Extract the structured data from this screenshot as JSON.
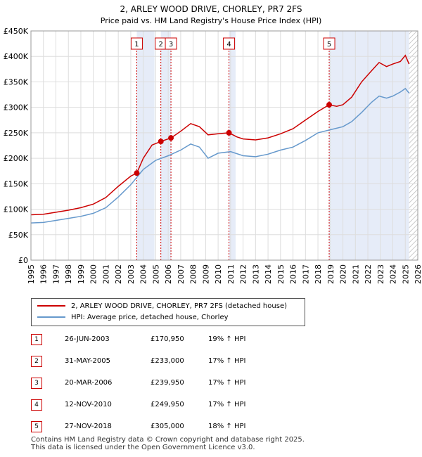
{
  "chart_data": {
    "type": "line",
    "title": "2, ARLEY WOOD DRIVE, CHORLEY, PR7 2FS",
    "subtitle": "Price paid vs. HM Land Registry's House Price Index (HPI)",
    "xlim": [
      1995,
      2026
    ],
    "ylim": [
      0,
      450000
    ],
    "x_ticks": [
      "1995",
      "1996",
      "1997",
      "1998",
      "1999",
      "2000",
      "2001",
      "2002",
      "2003",
      "2004",
      "2005",
      "2006",
      "2007",
      "2008",
      "2009",
      "2010",
      "2011",
      "2012",
      "2013",
      "2014",
      "2015",
      "2016",
      "2017",
      "2018",
      "2019",
      "2020",
      "2021",
      "2022",
      "2023",
      "2024",
      "2025",
      "2026"
    ],
    "y_ticks": [
      {
        "value": 0,
        "label": "£0"
      },
      {
        "value": 50000,
        "label": "£50K"
      },
      {
        "value": 100000,
        "label": "£100K"
      },
      {
        "value": 150000,
        "label": "£150K"
      },
      {
        "value": 200000,
        "label": "£200K"
      },
      {
        "value": 250000,
        "label": "£250K"
      },
      {
        "value": 300000,
        "label": "£300K"
      },
      {
        "value": 350000,
        "label": "£350K"
      },
      {
        "value": 400000,
        "label": "£400K"
      },
      {
        "value": 450000,
        "label": "£450K"
      }
    ],
    "shaded_ranges": [
      [
        2003.48,
        2004.9
      ],
      [
        2005.41,
        2006.22
      ],
      [
        2010.87,
        2011.4
      ],
      [
        2018.9,
        2025.3
      ]
    ],
    "future_hatch_from": 2025.3,
    "series": [
      {
        "name": "2, ARLEY WOOD DRIVE, CHORLEY, PR7 2FS (detached house)",
        "color": "#cc0000",
        "points": [
          [
            1995,
            89000
          ],
          [
            1996,
            90000
          ],
          [
            1997,
            94000
          ],
          [
            1998,
            98000
          ],
          [
            1999,
            103000
          ],
          [
            2000,
            110000
          ],
          [
            2001,
            123000
          ],
          [
            2002,
            145000
          ],
          [
            2003,
            165000
          ],
          [
            2003.48,
            170950
          ],
          [
            2004,
            200000
          ],
          [
            2004.7,
            226000
          ],
          [
            2005.41,
            233000
          ],
          [
            2006.22,
            239950
          ],
          [
            2007,
            253000
          ],
          [
            2007.8,
            268000
          ],
          [
            2008.5,
            262000
          ],
          [
            2009.2,
            246000
          ],
          [
            2010,
            248000
          ],
          [
            2010.87,
            249950
          ],
          [
            2011.5,
            242000
          ],
          [
            2012,
            238000
          ],
          [
            2013,
            236000
          ],
          [
            2014,
            240000
          ],
          [
            2015,
            248000
          ],
          [
            2016,
            258000
          ],
          [
            2017,
            275000
          ],
          [
            2018,
            292000
          ],
          [
            2018.9,
            305000
          ],
          [
            2019.5,
            302000
          ],
          [
            2020,
            305000
          ],
          [
            2020.7,
            320000
          ],
          [
            2021.5,
            350000
          ],
          [
            2022.3,
            372000
          ],
          [
            2022.9,
            388000
          ],
          [
            2023.5,
            380000
          ],
          [
            2024,
            385000
          ],
          [
            2024.6,
            390000
          ],
          [
            2025,
            402000
          ],
          [
            2025.3,
            385000
          ]
        ]
      },
      {
        "name": "HPI: Average price, detached house, Chorley",
        "color": "#6699cc",
        "points": [
          [
            1995,
            73000
          ],
          [
            1996,
            74000
          ],
          [
            1997,
            78000
          ],
          [
            1998,
            82000
          ],
          [
            1999,
            86000
          ],
          [
            2000,
            92000
          ],
          [
            2001,
            103000
          ],
          [
            2002,
            124000
          ],
          [
            2003,
            148000
          ],
          [
            2004,
            178000
          ],
          [
            2005,
            196000
          ],
          [
            2006,
            205000
          ],
          [
            2007,
            216000
          ],
          [
            2007.8,
            228000
          ],
          [
            2008.5,
            222000
          ],
          [
            2009.2,
            200000
          ],
          [
            2010,
            210000
          ],
          [
            2011,
            213000
          ],
          [
            2012,
            205000
          ],
          [
            2013,
            203000
          ],
          [
            2014,
            208000
          ],
          [
            2015,
            216000
          ],
          [
            2016,
            222000
          ],
          [
            2017,
            235000
          ],
          [
            2018,
            250000
          ],
          [
            2019,
            256000
          ],
          [
            2020,
            262000
          ],
          [
            2020.7,
            272000
          ],
          [
            2021.5,
            290000
          ],
          [
            2022.3,
            310000
          ],
          [
            2022.9,
            322000
          ],
          [
            2023.5,
            318000
          ],
          [
            2024,
            322000
          ],
          [
            2024.6,
            330000
          ],
          [
            2025,
            337000
          ],
          [
            2025.3,
            328000
          ]
        ]
      }
    ],
    "sale_markers": [
      {
        "label": "1",
        "year": 2003.48,
        "value": 170950
      },
      {
        "label": "2",
        "year": 2005.41,
        "value": 233000
      },
      {
        "label": "3",
        "year": 2006.22,
        "value": 239950
      },
      {
        "label": "4",
        "year": 2010.87,
        "value": 249950
      },
      {
        "label": "5",
        "year": 2018.9,
        "value": 305000
      }
    ]
  },
  "legend": {
    "property_label": "2, ARLEY WOOD DRIVE, CHORLEY, PR7 2FS (detached house)",
    "hpi_label": "HPI: Average price, detached house, Chorley",
    "property_color": "#cc0000",
    "hpi_color": "#6699cc"
  },
  "sales": [
    {
      "num": "1",
      "date": "26-JUN-2003",
      "price": "£170,950",
      "hpi": "19% ↑ HPI"
    },
    {
      "num": "2",
      "date": "31-MAY-2005",
      "price": "£233,000",
      "hpi": "17% ↑ HPI"
    },
    {
      "num": "3",
      "date": "20-MAR-2006",
      "price": "£239,950",
      "hpi": "17% ↑ HPI"
    },
    {
      "num": "4",
      "date": "12-NOV-2010",
      "price": "£249,950",
      "hpi": "17% ↑ HPI"
    },
    {
      "num": "5",
      "date": "27-NOV-2018",
      "price": "£305,000",
      "hpi": "18% ↑ HPI"
    }
  ],
  "footer": {
    "line1": "Contains HM Land Registry data © Crown copyright and database right 2025.",
    "line2": "This data is licensed under the Open Government Licence v3.0."
  }
}
